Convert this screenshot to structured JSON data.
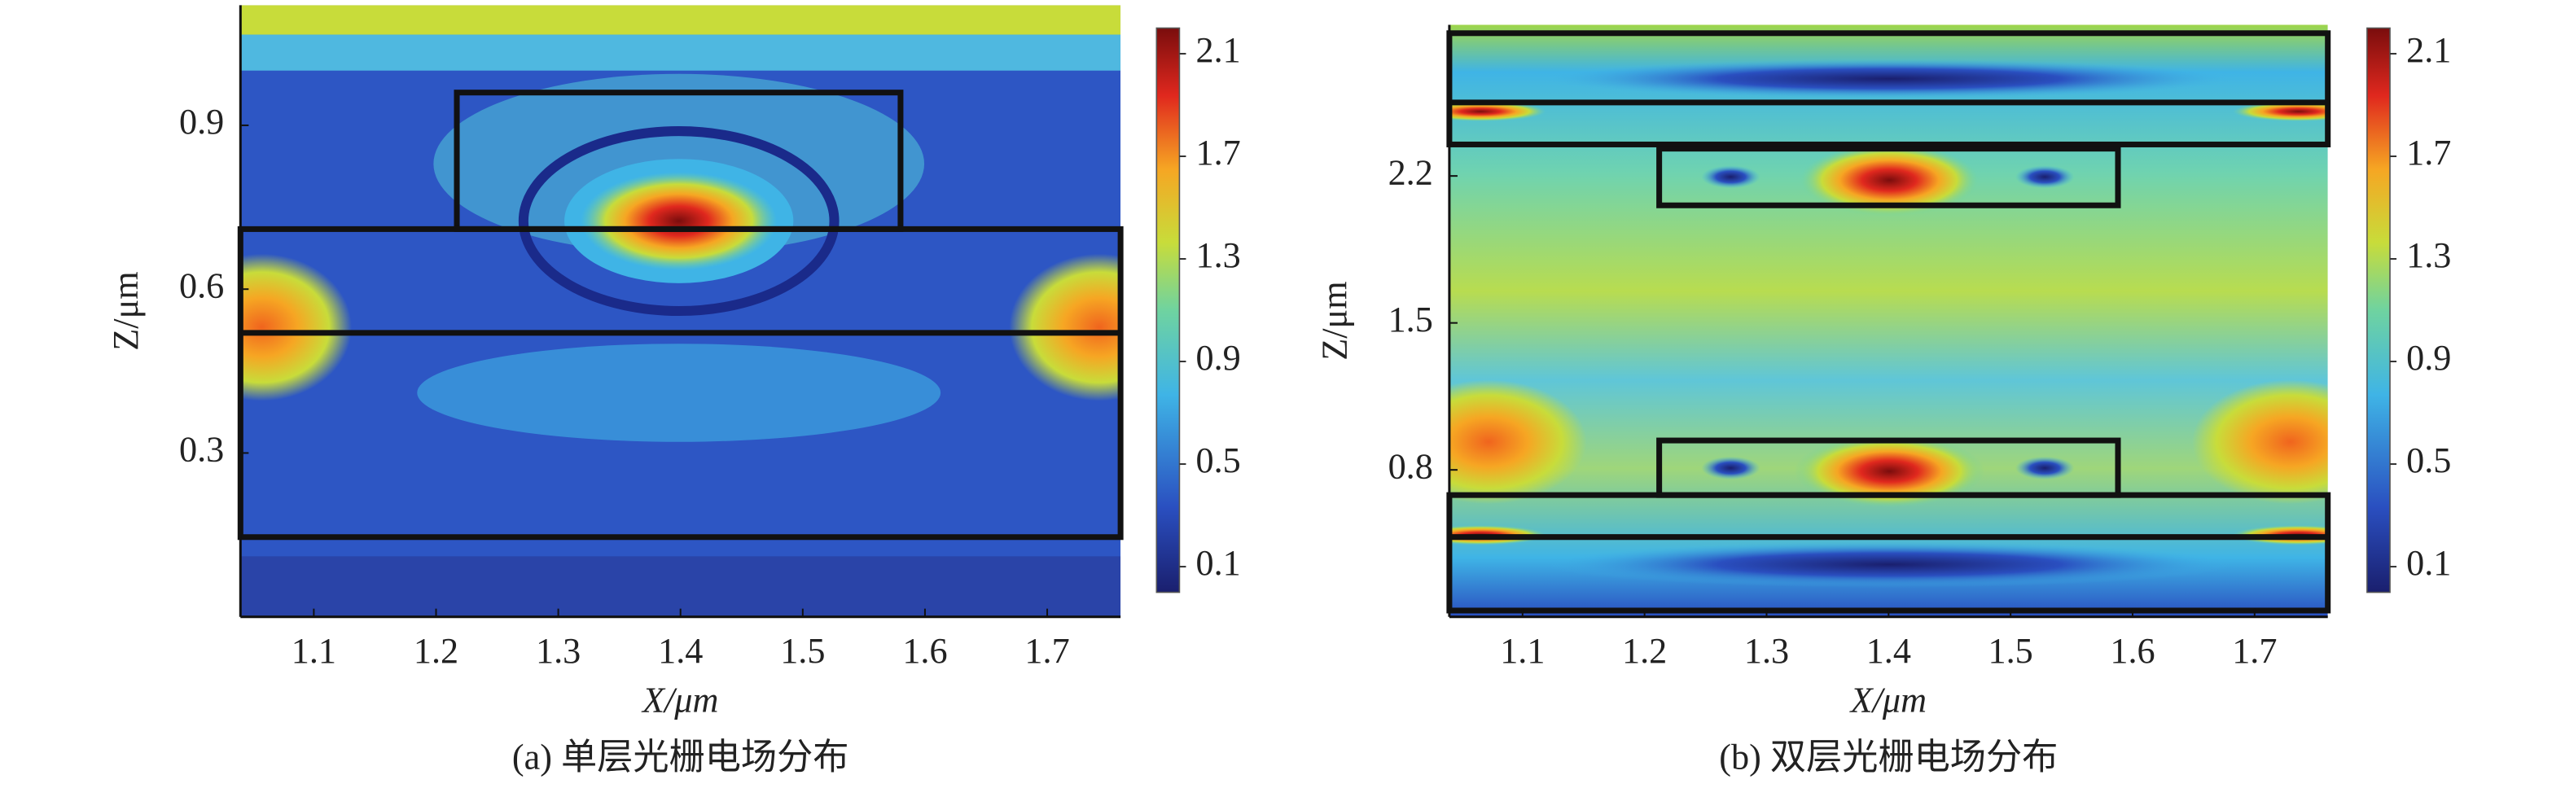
{
  "chart_data": [
    {
      "type": "heatmap",
      "title": "(a) 单层光栅电场分布",
      "x_label": "X/μm",
      "y_label": "Z/μm",
      "xlim": [
        1.04,
        1.76
      ],
      "xticks": [
        1.1,
        1.2,
        1.3,
        1.4,
        1.5,
        1.6,
        1.7
      ],
      "ylim": [
        0,
        1.12
      ],
      "yticks": [
        0.3,
        0.6,
        0.9
      ],
      "colorbar_lim": [
        0,
        2.2
      ],
      "colorbar_ticks": [
        0.1,
        0.5,
        0.9,
        1.3,
        1.7,
        2.1
      ],
      "outlines": [
        {
          "x": [
            1.217,
            1.58
          ],
          "y": [
            0.71,
            0.96
          ]
        },
        {
          "x": [
            1.04,
            1.76
          ],
          "y": [
            0.146,
            0.71
          ]
        }
      ],
      "lines": [
        0.52
      ]
    },
    {
      "type": "heatmap",
      "title": "(b) 双层光栅电场分布",
      "x_label": "X/μm",
      "y_label": "Z/μm",
      "xlim": [
        1.04,
        1.76
      ],
      "xticks": [
        1.1,
        1.2,
        1.3,
        1.4,
        1.5,
        1.6,
        1.7
      ],
      "ylim": [
        0.1,
        2.92
      ],
      "yticks": [
        0.8,
        1.5,
        2.2
      ],
      "colorbar_lim": [
        0,
        2.2
      ],
      "colorbar_ticks": [
        0.1,
        0.5,
        0.9,
        1.3,
        1.7,
        2.1
      ],
      "outlines": [
        {
          "x": [
            1.04,
            1.76
          ],
          "y": [
            2.35,
            2.88
          ]
        },
        {
          "x": [
            1.212,
            1.588
          ],
          "y": [
            2.06,
            2.33
          ]
        },
        {
          "x": [
            1.212,
            1.588
          ],
          "y": [
            0.68,
            0.94
          ]
        },
        {
          "x": [
            1.04,
            1.76
          ],
          "y": [
            0.13,
            0.68
          ]
        }
      ],
      "lines": [
        2.55,
        0.48
      ]
    }
  ]
}
